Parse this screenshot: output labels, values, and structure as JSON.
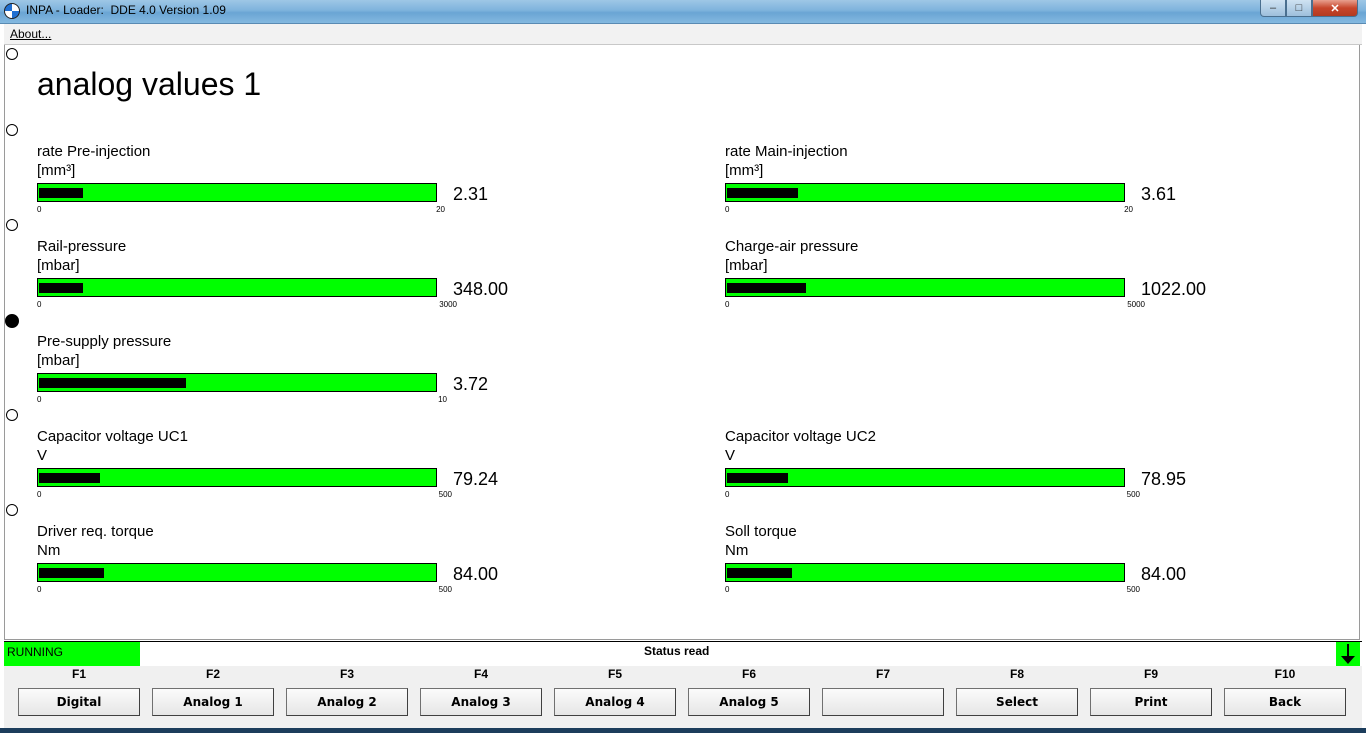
{
  "window": {
    "title": "INPA - Loader:  DDE 4.0 Version 1.09"
  },
  "menu": {
    "about": "About..."
  },
  "page_title": "analog values 1",
  "meters": [
    {
      "label": "rate Pre-injection",
      "unit": "[mm³]",
      "value": "2.31",
      "min": "0",
      "max": "20",
      "fraction": 0.11
    },
    {
      "label": "rate Main-injection",
      "unit": "[mm³]",
      "value": "3.61",
      "min": "0",
      "max": "20",
      "fraction": 0.18
    },
    {
      "label": "Rail-pressure",
      "unit": "[mbar]",
      "value": "348.00",
      "min": "0",
      "max": "3000",
      "fraction": 0.11
    },
    {
      "label": "Charge-air pressure",
      "unit": "[mbar]",
      "value": "1022.00",
      "min": "0",
      "max": "5000",
      "fraction": 0.2
    },
    {
      "label": "Pre-supply pressure",
      "unit": "[mbar]",
      "value": "3.72",
      "min": "0",
      "max": "10",
      "fraction": 0.37
    },
    {
      "label": "Capacitor voltage UC1",
      "unit": "V",
      "value": "79.24",
      "min": "0",
      "max": "500",
      "fraction": 0.155
    },
    {
      "label": "Capacitor voltage UC2",
      "unit": "V",
      "value": "78.95",
      "min": "0",
      "max": "500",
      "fraction": 0.155
    },
    {
      "label": "Driver req. torque",
      "unit": "Nm",
      "value": "84.00",
      "min": "0",
      "max": "500",
      "fraction": 0.165
    },
    {
      "label": "Soll torque",
      "unit": "Nm",
      "value": "84.00",
      "min": "0",
      "max": "500",
      "fraction": 0.165
    }
  ],
  "status": {
    "state": "RUNNING",
    "text": "Status read"
  },
  "fkeys": [
    {
      "key": "F1",
      "label": "Digital"
    },
    {
      "key": "F2",
      "label": "Analog 1"
    },
    {
      "key": "F3",
      "label": "Analog 2"
    },
    {
      "key": "F4",
      "label": "Analog 3"
    },
    {
      "key": "F5",
      "label": "Analog 4"
    },
    {
      "key": "F6",
      "label": "Analog 5"
    },
    {
      "key": "F7",
      "label": ""
    },
    {
      "key": "F8",
      "label": "Select"
    },
    {
      "key": "F9",
      "label": "Print"
    },
    {
      "key": "F10",
      "label": "Back"
    }
  ],
  "colors": {
    "bar": "#00ff00",
    "fill": "#000000",
    "running": "#00ff00"
  },
  "icons": {
    "app": "bmw-logo-icon",
    "scroll": "arrow-down-icon"
  }
}
